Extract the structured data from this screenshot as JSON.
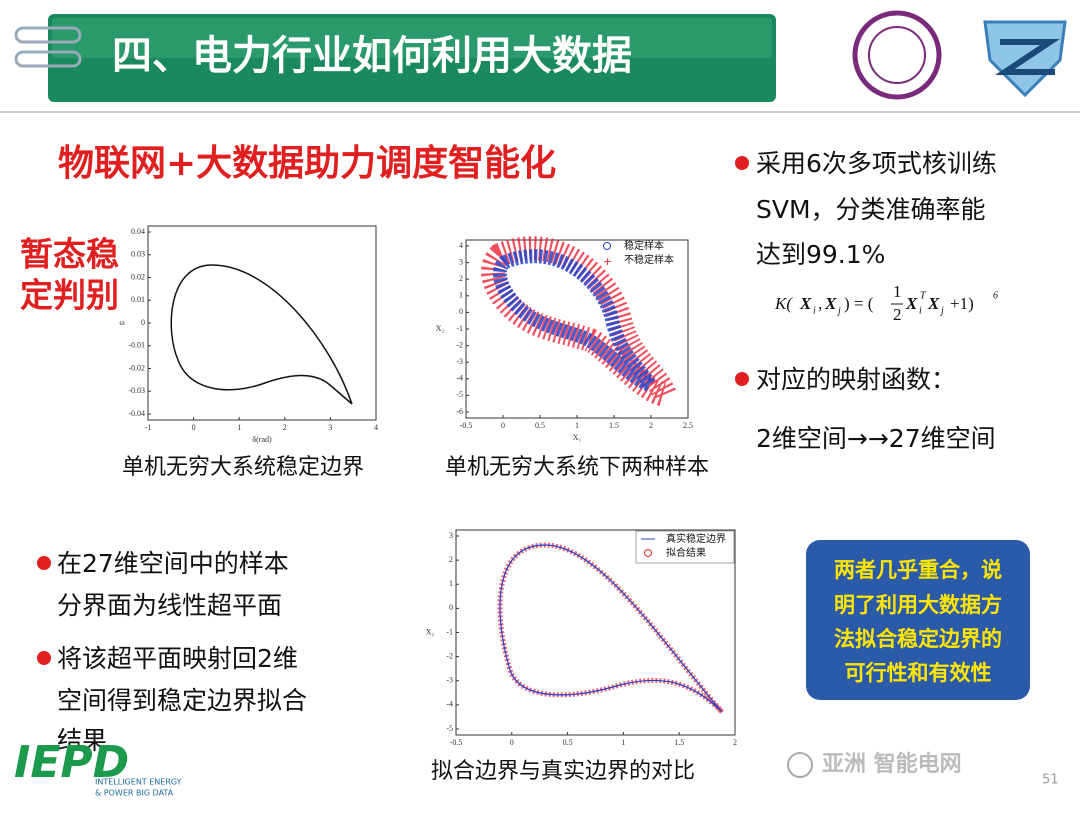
{
  "header": {
    "title": "四、电力行业如何利用大数据"
  },
  "subtitle": "物联网+大数据助力调度智能化",
  "side_label": [
    "暂态稳",
    "定判别"
  ],
  "plots": [
    {
      "yticks": [
        "0.04",
        "0.03",
        "0.02",
        "0.01",
        "0",
        "-0.01",
        "-0.02",
        "-0.03",
        "-0.04"
      ],
      "xticks": [
        "-1",
        "0",
        "1",
        "2",
        "3",
        "4"
      ],
      "xlabel": "δ(rad)",
      "ylabel": "ω",
      "caption": "单机无穷大系统稳定边界"
    },
    {
      "yticks": [
        "4",
        "3",
        "2",
        "1",
        "0",
        "-1",
        "-2",
        "-3",
        "-4",
        "-5",
        "-6"
      ],
      "xticks": [
        "-0.5",
        "0",
        "0.5",
        "1",
        "1.5",
        "2",
        "2.5"
      ],
      "xlabel": "X₁",
      "ylabel": "X₂",
      "legend": [
        "稳定样本",
        "不稳定样本"
      ],
      "caption": "单机无穷大系统下两种样本"
    },
    {
      "yticks": [
        "3",
        "2",
        "1",
        "0",
        "-1",
        "-2",
        "-3",
        "-4",
        "-5"
      ],
      "xticks": [
        "-0.5",
        "0",
        "0.5",
        "1",
        "1.5",
        "2"
      ],
      "ylabel": "X₂",
      "legend": [
        "真实稳定边界",
        "拟合结果"
      ],
      "caption": "拟合边界与真实边界的对比"
    }
  ],
  "right_bullets": [
    [
      "采用6次多项式核训练",
      "SVM，分类准确率能",
      "达到99.1%"
    ],
    [
      "对应的映射函数："
    ]
  ],
  "formula": [
    "K(",
    "X",
    "i",
    ",",
    "X",
    "j",
    ") = (",
    "1",
    "2",
    "X",
    "i",
    "T",
    "X",
    "j",
    "+1)",
    "6"
  ],
  "mapping": "2维空间→→27维空间",
  "left_bullets": [
    [
      "在27维空间中的样本",
      "分界面为线性超平面"
    ],
    [
      "将该超平面映射回2维",
      "空间得到稳定边界拟合",
      "结果"
    ]
  ],
  "callout": [
    "两者几乎重合，说",
    "明了利用大数据方",
    "法拟合稳定边界的",
    "可行性和有效性"
  ],
  "footer": {
    "logo": "IEPD",
    "logo_sub": [
      "INTELLIGENT ENERGY",
      "& POWER BIG DATA"
    ],
    "watermark": "亚洲 智能电网",
    "page": "51"
  }
}
